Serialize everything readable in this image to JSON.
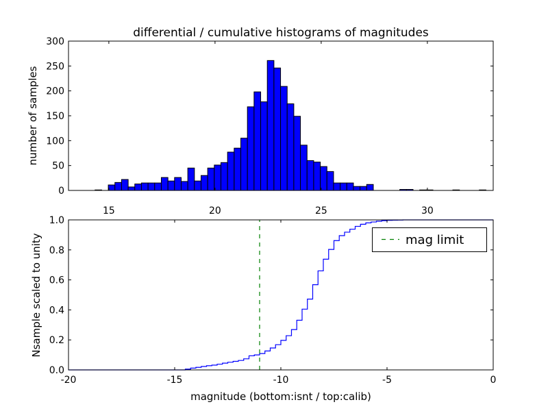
{
  "chart_data": [
    {
      "type": "bar",
      "title": "differential / cumulative histograms of magnitudes",
      "xlabel": "",
      "ylabel": "number of samples",
      "xlim": [
        13.1,
        33.1
      ],
      "ylim": [
        0,
        300
      ],
      "xticks": [
        15,
        20,
        25,
        30
      ],
      "yticks": [
        0,
        50,
        100,
        150,
        200,
        250,
        300
      ],
      "bin_start": 14.35,
      "bin_width": 0.312,
      "values": [
        1,
        0,
        11,
        16,
        22,
        7,
        13,
        15,
        15,
        15,
        26,
        19,
        26,
        18,
        45,
        19,
        30,
        45,
        51,
        56,
        77,
        85,
        105,
        168,
        198,
        178,
        261,
        246,
        209,
        174,
        149,
        91,
        60,
        57,
        48,
        38,
        15,
        15,
        15,
        8,
        8,
        12,
        0,
        0,
        0,
        0,
        2,
        2,
        0,
        1,
        1,
        0,
        0,
        0,
        1,
        0,
        0,
        0,
        1
      ],
      "color": "#0000ff"
    },
    {
      "type": "line",
      "title": "",
      "xlabel": "magnitude (bottom:isnt / top:calib)",
      "ylabel": "Nsample scaled to unity",
      "xlim": [
        -20,
        0
      ],
      "ylim": [
        0,
        1
      ],
      "xticks": [
        -20,
        -15,
        -10,
        -5,
        0
      ],
      "yticks": [
        "0.0",
        "0.2",
        "0.4",
        "0.6",
        "0.8",
        "1.0"
      ],
      "step_start": -14.5,
      "step_width": 0.25,
      "values": [
        0.005,
        0.012,
        0.017,
        0.023,
        0.028,
        0.032,
        0.038,
        0.045,
        0.051,
        0.057,
        0.063,
        0.074,
        0.094,
        0.1,
        0.109,
        0.126,
        0.146,
        0.168,
        0.197,
        0.228,
        0.269,
        0.331,
        0.405,
        0.472,
        0.568,
        0.66,
        0.738,
        0.803,
        0.862,
        0.895,
        0.918,
        0.938,
        0.957,
        0.971,
        0.98,
        0.986,
        0.991,
        0.995,
        0.997,
        0.998,
        0.999,
        1.0
      ],
      "color": "#0000ff",
      "mag_limit": -11,
      "mag_limit_color": "#008000",
      "legend": {
        "label": "mag limit",
        "position": "top-right"
      }
    }
  ]
}
